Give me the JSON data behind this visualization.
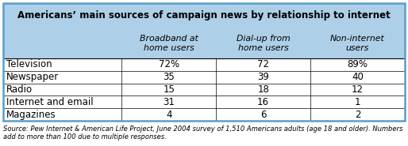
{
  "title": "Americans’ main sources of campaign news by relationship to internet",
  "col_headers": [
    "Broadband at\nhome users",
    "Dial-up from\nhome users",
    "Non-internet\nusers"
  ],
  "row_labels": [
    "Television",
    "Newspaper",
    "Radio",
    "Internet and email",
    "Magazines"
  ],
  "data": [
    [
      "72%",
      "72",
      "89%"
    ],
    [
      "35",
      "39",
      "40"
    ],
    [
      "15",
      "18",
      "12"
    ],
    [
      "31",
      "16",
      "1"
    ],
    [
      "4",
      "6",
      "2"
    ]
  ],
  "header_bg": "#aecfe8",
  "border_color": "#000000",
  "outer_border_color": "#5a9dc8",
  "title_fontsize": 8.5,
  "header_fontsize": 7.8,
  "cell_fontsize": 8.5,
  "source_fontsize": 6.0,
  "source_text": "Source: Pew Internet & American Life Project, June 2004 survey of 1,510 Americans adults (age 18 and older). Numbers add to more than 100 due to multiple responses."
}
